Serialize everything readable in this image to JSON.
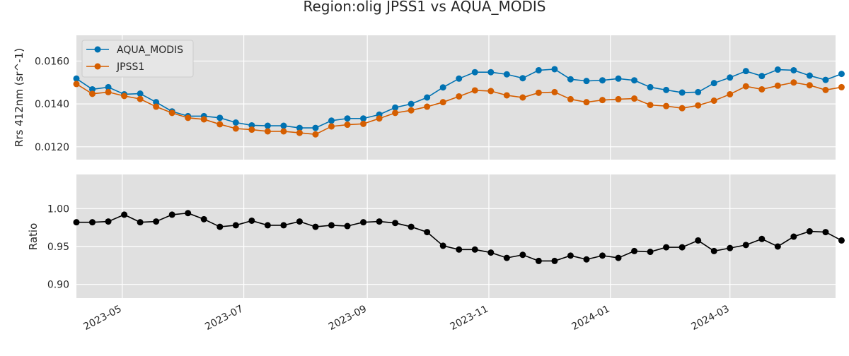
{
  "chart_data": {
    "type": "line",
    "title": "Region:olig JPSS1 vs AQUA_MODIS",
    "x_axis": {
      "type": "date",
      "range": [
        "2023-04-08",
        "2024-04-23"
      ],
      "ticks": [
        "2023-05-01",
        "2023-07-01",
        "2023-09-01",
        "2023-11-01",
        "2024-01-01",
        "2024-03-01"
      ],
      "tick_labels": [
        "2023-05",
        "2023-07",
        "2023-09",
        "2023-11",
        "2024-01",
        "2024-03"
      ],
      "grid": true
    },
    "x": [
      "2023-04-08",
      "2023-04-16",
      "2023-04-24",
      "2023-05-02",
      "2023-05-10",
      "2023-05-18",
      "2023-05-26",
      "2023-06-03",
      "2023-06-11",
      "2023-06-19",
      "2023-06-27",
      "2023-07-05",
      "2023-07-13",
      "2023-07-21",
      "2023-07-29",
      "2023-08-06",
      "2023-08-14",
      "2023-08-22",
      "2023-08-30",
      "2023-09-07",
      "2023-09-15",
      "2023-09-23",
      "2023-10-01",
      "2023-10-09",
      "2023-10-17",
      "2023-10-25",
      "2023-11-02",
      "2023-11-10",
      "2023-11-18",
      "2023-11-26",
      "2023-12-04",
      "2023-12-12",
      "2023-12-20",
      "2023-12-28",
      "2024-01-05",
      "2024-01-13",
      "2024-01-21",
      "2024-01-29",
      "2024-02-06",
      "2024-02-14",
      "2024-02-22",
      "2024-03-01",
      "2024-03-09",
      "2024-03-17",
      "2024-03-25",
      "2024-04-02",
      "2024-04-10",
      "2024-04-18",
      "2024-04-26"
    ],
    "panels": [
      {
        "ylabel": "Rrs 412nm (sr^-1)",
        "ylim": [
          0.0114,
          0.0172
        ],
        "yticks": [
          0.012,
          0.014,
          0.016
        ],
        "ytick_labels": [
          "0.0120",
          "0.0140",
          "0.0160"
        ],
        "grid": true,
        "legend": {
          "position": "top-left",
          "entries": [
            "AQUA_MODIS",
            "JPSS1"
          ]
        },
        "series": [
          {
            "name": "AQUA_MODIS",
            "color": "#0072b2",
            "values": [
              0.01518,
              0.01468,
              0.01478,
              0.01445,
              0.01448,
              0.01408,
              0.01365,
              0.01343,
              0.01343,
              0.01335,
              0.01313,
              0.013,
              0.01298,
              0.01298,
              0.01288,
              0.01288,
              0.01322,
              0.01332,
              0.01332,
              0.0135,
              0.01383,
              0.014,
              0.0143,
              0.01477,
              0.01518,
              0.01548,
              0.01548,
              0.01538,
              0.0152,
              0.01557,
              0.01562,
              0.01515,
              0.01507,
              0.0151,
              0.01518,
              0.0151,
              0.01478,
              0.01465,
              0.01453,
              0.01455,
              0.01497,
              0.01523,
              0.01553,
              0.0153,
              0.0156,
              0.01557,
              0.01532,
              0.01512,
              0.0154
            ]
          },
          {
            "name": "JPSS1",
            "color": "#d55e00",
            "values": [
              0.01493,
              0.01447,
              0.01455,
              0.01437,
              0.01423,
              0.01387,
              0.01358,
              0.01335,
              0.01328,
              0.01305,
              0.01285,
              0.0128,
              0.01272,
              0.01272,
              0.01265,
              0.01258,
              0.01295,
              0.01303,
              0.01307,
              0.01332,
              0.01358,
              0.0137,
              0.01387,
              0.01408,
              0.01435,
              0.01463,
              0.0146,
              0.0144,
              0.0143,
              0.01452,
              0.01455,
              0.01422,
              0.01408,
              0.01418,
              0.01422,
              0.01425,
              0.01395,
              0.0139,
              0.0138,
              0.01393,
              0.01415,
              0.01445,
              0.01482,
              0.01468,
              0.01485,
              0.015,
              0.01487,
              0.01465,
              0.01478
            ]
          }
        ]
      },
      {
        "ylabel": "Ratio",
        "ylim": [
          0.882,
          1.045
        ],
        "yticks": [
          0.9,
          0.95,
          1.0
        ],
        "ytick_labels": [
          "0.90",
          "0.95",
          "1.00"
        ],
        "grid": true,
        "series": [
          {
            "color": "#000000",
            "values": [
              0.982,
              0.982,
              0.983,
              0.992,
              0.982,
              0.983,
              0.992,
              0.994,
              0.986,
              0.976,
              0.978,
              0.984,
              0.978,
              0.978,
              0.983,
              0.976,
              0.978,
              0.977,
              0.982,
              0.983,
              0.981,
              0.976,
              0.969,
              0.951,
              0.946,
              0.946,
              0.942,
              0.935,
              0.939,
              0.931,
              0.931,
              0.938,
              0.933,
              0.938,
              0.935,
              0.944,
              0.943,
              0.949,
              0.949,
              0.958,
              0.944,
              0.948,
              0.952,
              0.96,
              0.95,
              0.963,
              0.97,
              0.969,
              0.958
            ]
          }
        ]
      }
    ]
  }
}
